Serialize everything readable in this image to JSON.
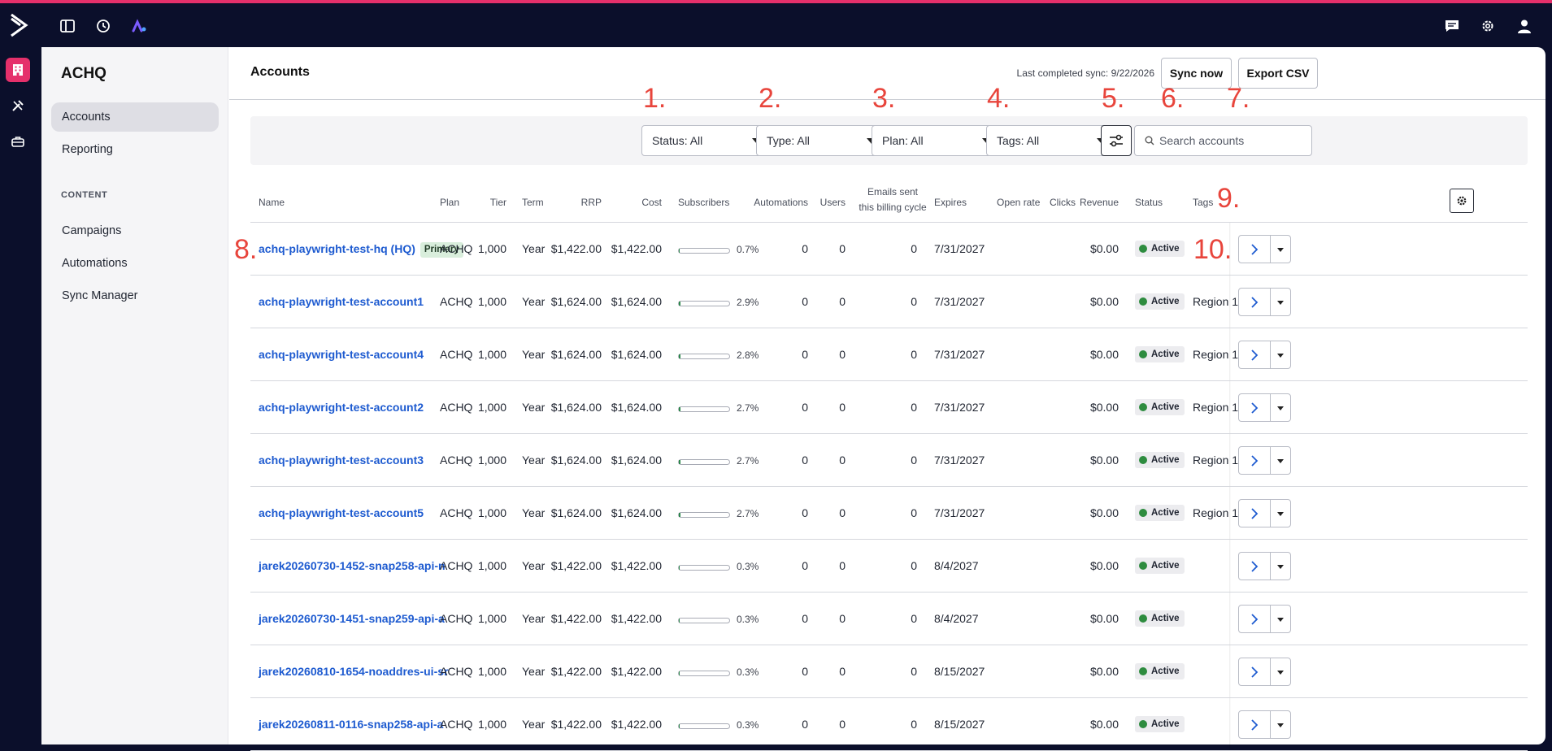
{
  "app": {
    "brand_color": "#e5306b",
    "background": "#0b0f2b",
    "link_color": "#1e5bd0"
  },
  "topbar": {
    "left_icons": [
      "sidebar-toggle-icon",
      "history-icon",
      "app-switch-icon"
    ],
    "right_icons": [
      "chat-icon",
      "gear-icon",
      "user-icon"
    ]
  },
  "rail": {
    "items": [
      "building-icon",
      "tools-icon",
      "briefcase-icon"
    ]
  },
  "sidenav": {
    "brand": "ACHQ",
    "items": [
      {
        "label": "Accounts",
        "active": true
      },
      {
        "label": "Reporting",
        "active": false
      }
    ],
    "section_label": "CONTENT",
    "content_items": [
      {
        "label": "Campaigns"
      },
      {
        "label": "Automations"
      },
      {
        "label": "Sync Manager"
      }
    ]
  },
  "header": {
    "title": "Accounts",
    "sync_text": "Last completed sync: 9/22/2026",
    "sync_button": "Sync now",
    "export_button": "Export CSV"
  },
  "filters": {
    "status": "Status: All",
    "type": "Type: All",
    "plan": "Plan: All",
    "tags": "Tags: All",
    "search_placeholder": "Search accounts"
  },
  "annotations": [
    "1.",
    "2.",
    "3.",
    "4.",
    "5.",
    "6.",
    "7.",
    "8.",
    "9.",
    "10."
  ],
  "table": {
    "headers": {
      "name": "Name",
      "plan": "Plan",
      "tier": "Tier",
      "term": "Term",
      "rrp": "RRP",
      "cost": "Cost",
      "subscribers": "Subscribers",
      "automations": "Automations",
      "users": "Users",
      "emails_1": "Emails sent",
      "emails_2": "this billing cycle",
      "expires": "Expires",
      "open_rate": "Open rate",
      "clicks": "Clicks",
      "revenue": "Revenue",
      "status": "Status",
      "tags": "Tags"
    },
    "rows": [
      {
        "name": "achq-playwright-test-hq (HQ)",
        "badge": "Primary",
        "plan": "ACHQ",
        "tier": "1,000",
        "term": "Year",
        "rrp": "$1,422.00",
        "cost": "$1,422.00",
        "subscribers_pct": "0.7%",
        "subscribers_fill": 0.007,
        "automations": "0",
        "users": "0",
        "emails": "0",
        "expires": "7/31/2027",
        "open_rate": "",
        "clicks": "",
        "revenue": "$0.00",
        "status": "Active",
        "tags": ""
      },
      {
        "name": "achq-playwright-test-account1",
        "badge": "",
        "plan": "ACHQ",
        "tier": "1,000",
        "term": "Year",
        "rrp": "$1,624.00",
        "cost": "$1,624.00",
        "subscribers_pct": "2.9%",
        "subscribers_fill": 0.029,
        "automations": "0",
        "users": "0",
        "emails": "0",
        "expires": "7/31/2027",
        "open_rate": "",
        "clicks": "",
        "revenue": "$0.00",
        "status": "Active",
        "tags": "Region 1"
      },
      {
        "name": "achq-playwright-test-account4",
        "badge": "",
        "plan": "ACHQ",
        "tier": "1,000",
        "term": "Year",
        "rrp": "$1,624.00",
        "cost": "$1,624.00",
        "subscribers_pct": "2.8%",
        "subscribers_fill": 0.028,
        "automations": "0",
        "users": "0",
        "emails": "0",
        "expires": "7/31/2027",
        "open_rate": "",
        "clicks": "",
        "revenue": "$0.00",
        "status": "Active",
        "tags": "Region 1"
      },
      {
        "name": "achq-playwright-test-account2",
        "badge": "",
        "plan": "ACHQ",
        "tier": "1,000",
        "term": "Year",
        "rrp": "$1,624.00",
        "cost": "$1,624.00",
        "subscribers_pct": "2.7%",
        "subscribers_fill": 0.027,
        "automations": "0",
        "users": "0",
        "emails": "0",
        "expires": "7/31/2027",
        "open_rate": "",
        "clicks": "",
        "revenue": "$0.00",
        "status": "Active",
        "tags": "Region 1"
      },
      {
        "name": "achq-playwright-test-account3",
        "badge": "",
        "plan": "ACHQ",
        "tier": "1,000",
        "term": "Year",
        "rrp": "$1,624.00",
        "cost": "$1,624.00",
        "subscribers_pct": "2.7%",
        "subscribers_fill": 0.027,
        "automations": "0",
        "users": "0",
        "emails": "0",
        "expires": "7/31/2027",
        "open_rate": "",
        "clicks": "",
        "revenue": "$0.00",
        "status": "Active",
        "tags": "Region 1"
      },
      {
        "name": "achq-playwright-test-account5",
        "badge": "",
        "plan": "ACHQ",
        "tier": "1,000",
        "term": "Year",
        "rrp": "$1,624.00",
        "cost": "$1,624.00",
        "subscribers_pct": "2.7%",
        "subscribers_fill": 0.027,
        "automations": "0",
        "users": "0",
        "emails": "0",
        "expires": "7/31/2027",
        "open_rate": "",
        "clicks": "",
        "revenue": "$0.00",
        "status": "Active",
        "tags": "Region 1"
      },
      {
        "name": "jarek20260730-1452-snap258-api-n",
        "badge": "",
        "plan": "ACHQ",
        "tier": "1,000",
        "term": "Year",
        "rrp": "$1,422.00",
        "cost": "$1,422.00",
        "subscribers_pct": "0.3%",
        "subscribers_fill": 0.003,
        "automations": "0",
        "users": "0",
        "emails": "0",
        "expires": "8/4/2027",
        "open_rate": "",
        "clicks": "",
        "revenue": "$0.00",
        "status": "Active",
        "tags": ""
      },
      {
        "name": "jarek20260730-1451-snap259-api-a",
        "badge": "",
        "plan": "ACHQ",
        "tier": "1,000",
        "term": "Year",
        "rrp": "$1,422.00",
        "cost": "$1,422.00",
        "subscribers_pct": "0.3%",
        "subscribers_fill": 0.003,
        "automations": "0",
        "users": "0",
        "emails": "0",
        "expires": "8/4/2027",
        "open_rate": "",
        "clicks": "",
        "revenue": "$0.00",
        "status": "Active",
        "tags": ""
      },
      {
        "name": "jarek20260810-1654-noaddres-ui-sr",
        "badge": "",
        "plan": "ACHQ",
        "tier": "1,000",
        "term": "Year",
        "rrp": "$1,422.00",
        "cost": "$1,422.00",
        "subscribers_pct": "0.3%",
        "subscribers_fill": 0.003,
        "automations": "0",
        "users": "0",
        "emails": "0",
        "expires": "8/15/2027",
        "open_rate": "",
        "clicks": "",
        "revenue": "$0.00",
        "status": "Active",
        "tags": ""
      },
      {
        "name": "jarek20260811-0116-snap258-api-a",
        "badge": "",
        "plan": "ACHQ",
        "tier": "1,000",
        "term": "Year",
        "rrp": "$1,422.00",
        "cost": "$1,422.00",
        "subscribers_pct": "0.3%",
        "subscribers_fill": 0.003,
        "automations": "0",
        "users": "0",
        "emails": "0",
        "expires": "8/15/2027",
        "open_rate": "",
        "clicks": "",
        "revenue": "$0.00",
        "status": "Active",
        "tags": ""
      }
    ]
  }
}
